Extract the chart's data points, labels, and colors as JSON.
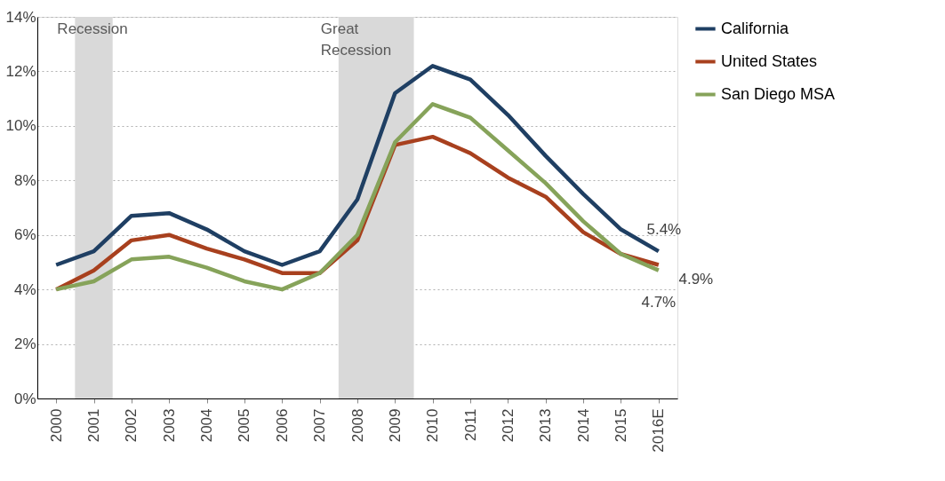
{
  "chart_data": {
    "type": "line",
    "categories": [
      "2000",
      "2001",
      "2002",
      "2003",
      "2004",
      "2005",
      "2006",
      "2007",
      "2008",
      "2009",
      "2010",
      "2011",
      "2012",
      "2013",
      "2014",
      "2015",
      "2016E"
    ],
    "series": [
      {
        "name": "California",
        "color": "#1f3f63",
        "values": [
          4.9,
          5.4,
          6.7,
          6.8,
          6.2,
          5.4,
          4.9,
          5.4,
          7.3,
          11.2,
          12.2,
          11.7,
          10.4,
          8.9,
          7.5,
          6.2,
          5.4
        ],
        "value_labels": [
          null,
          null,
          null,
          null,
          null,
          null,
          null,
          null,
          null,
          null,
          null,
          null,
          null,
          null,
          null,
          null,
          "5.4%"
        ]
      },
      {
        "name": "United States",
        "color": "#a8401e",
        "values": [
          4.0,
          4.7,
          5.8,
          6.0,
          5.5,
          5.1,
          4.6,
          4.6,
          5.8,
          9.3,
          9.6,
          9.0,
          8.1,
          7.4,
          6.1,
          5.3,
          4.9
        ],
        "value_labels": [
          null,
          null,
          null,
          null,
          null,
          null,
          null,
          null,
          null,
          null,
          null,
          null,
          null,
          null,
          null,
          null,
          "4.9%"
        ]
      },
      {
        "name": "San Diego MSA",
        "color": "#86a35a",
        "values": [
          4.0,
          4.3,
          5.1,
          5.2,
          4.8,
          4.3,
          4.0,
          4.6,
          6.0,
          9.4,
          10.8,
          10.3,
          9.1,
          7.9,
          6.5,
          5.3,
          4.7
        ],
        "value_labels": [
          null,
          null,
          null,
          null,
          null,
          null,
          null,
          null,
          null,
          null,
          null,
          null,
          null,
          null,
          null,
          null,
          "4.7%"
        ]
      }
    ],
    "ylim": [
      0,
      14
    ],
    "yticks": [
      {
        "value": 0,
        "label": "0%"
      },
      {
        "value": 2,
        "label": "2%"
      },
      {
        "value": 4,
        "label": "4%"
      },
      {
        "value": 6,
        "label": "6%"
      },
      {
        "value": 8,
        "label": "8%"
      },
      {
        "value": 10,
        "label": "10%"
      },
      {
        "value": 12,
        "label": "12%"
      },
      {
        "value": 14,
        "label": "14%"
      }
    ],
    "bands": [
      {
        "axis": "x",
        "from": "2001",
        "to": "2001",
        "label": "Recession",
        "color": "#d9d9d9"
      },
      {
        "axis": "x",
        "from": "2008",
        "to": "2009",
        "label": "Great Recession",
        "color": "#d9d9d9"
      }
    ],
    "grid": "y",
    "legend": "right",
    "line_style": "solid",
    "marker": "none"
  }
}
